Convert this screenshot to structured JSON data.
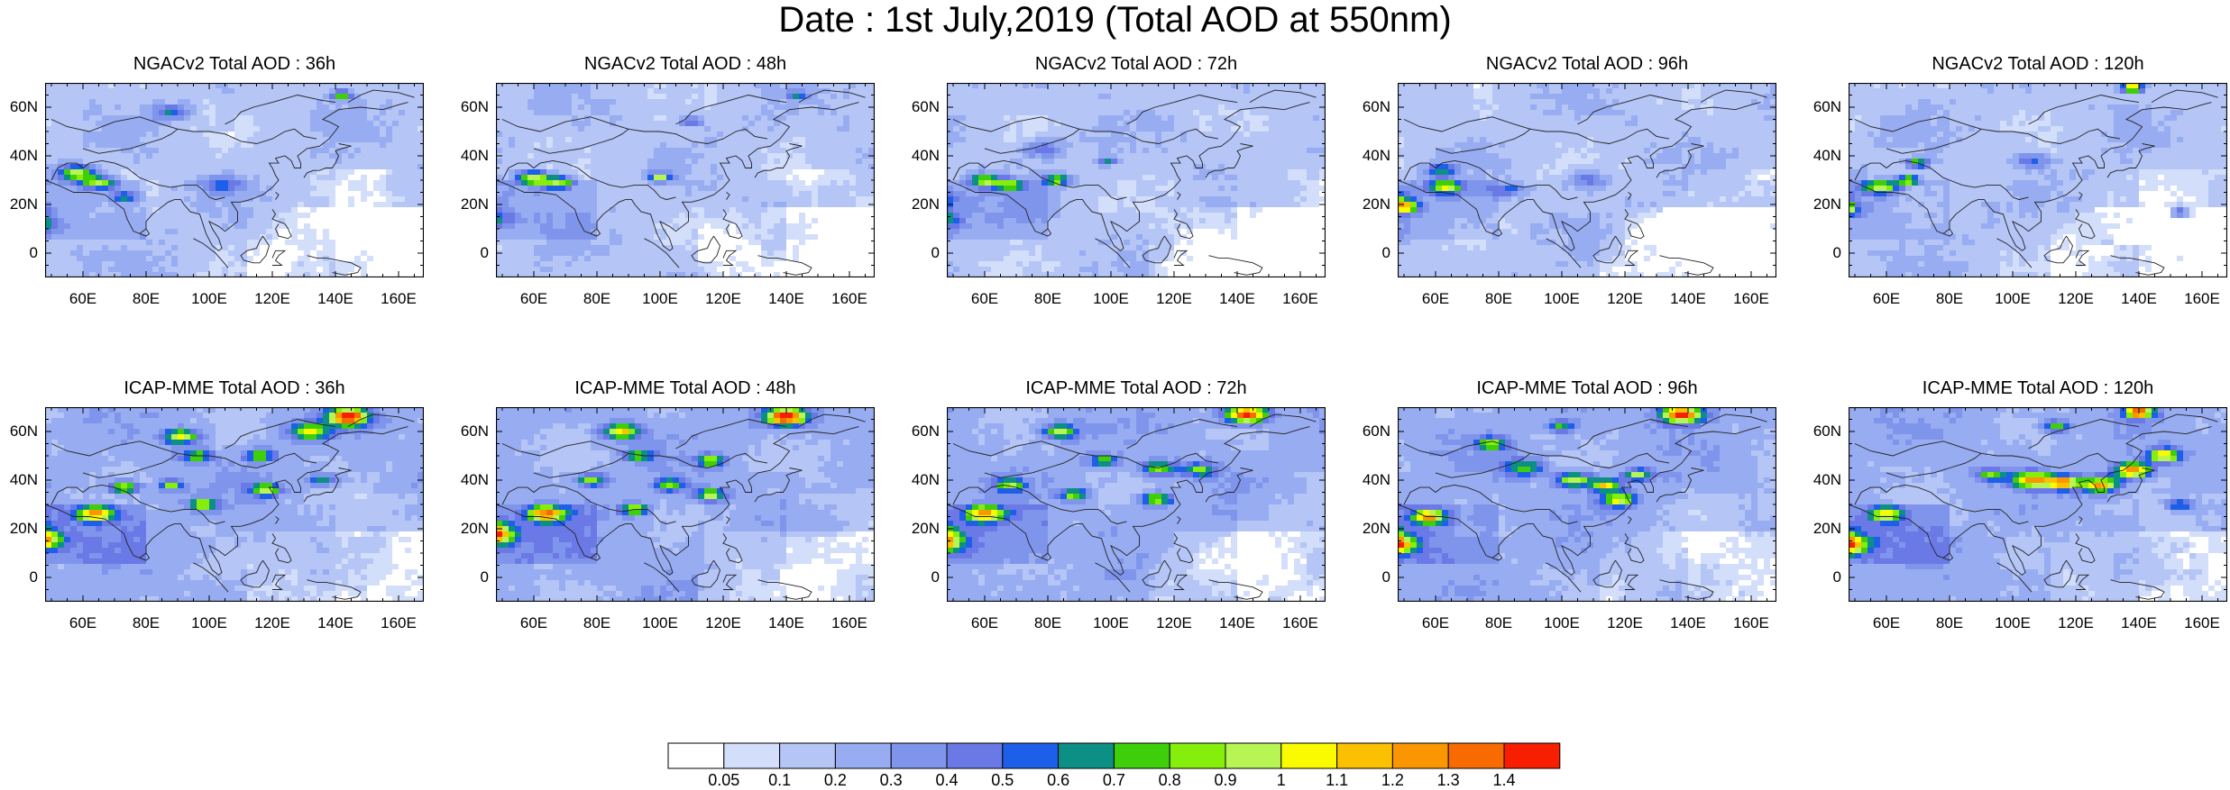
{
  "figure": {
    "title": "Date : 1st July,2019 (Total AOD at 550nm)"
  },
  "panels": [
    {
      "title": "NGACv2 Total AOD : 36h",
      "model": "NGACv2",
      "lead": "36h",
      "hotspots": [
        [
          -7,
          18,
          2.6,
          0.75
        ],
        [
          -3,
          12,
          3,
          0.55
        ],
        [
          10,
          33,
          2.6,
          0.85
        ],
        [
          17,
          29,
          2.3,
          0.7
        ],
        [
          25,
          23,
          2,
          0.45
        ],
        [
          56,
          28,
          3,
          0.35
        ],
        [
          94,
          65,
          1.6,
          0.7
        ],
        [
          40,
          58,
          2.4,
          0.45
        ]
      ]
    },
    {
      "title": "NGACv2 Total AOD : 48h",
      "model": "NGACv2",
      "lead": "48h",
      "hotspots": [
        [
          -7,
          20,
          2.6,
          0.72
        ],
        [
          -2,
          14,
          3,
          0.5
        ],
        [
          12,
          31,
          2.4,
          0.85
        ],
        [
          20,
          29,
          2.2,
          0.65
        ],
        [
          52,
          31,
          1.6,
          0.75
        ],
        [
          95,
          65,
          1.5,
          0.5
        ],
        [
          62,
          54,
          1.6,
          0.45
        ]
      ]
    },
    {
      "title": "NGACv2 Total AOD : 72h",
      "model": "NGACv2",
      "lead": "72h",
      "hotspots": [
        [
          -5,
          22,
          3,
          0.75
        ],
        [
          -3,
          14,
          3.2,
          0.6
        ],
        [
          12,
          30,
          2.2,
          0.7
        ],
        [
          20,
          28,
          2,
          0.6
        ],
        [
          35,
          30,
          1.8,
          0.75
        ],
        [
          51,
          38,
          1.4,
          0.45
        ],
        [
          30,
          43,
          3,
          0.35
        ]
      ]
    },
    {
      "title": "NGACv2 Total AOD : 96h",
      "model": "NGACv2",
      "lead": "96h",
      "hotspots": [
        [
          -4,
          22,
          3,
          0.75
        ],
        [
          2,
          19,
          2.2,
          0.85
        ],
        [
          15,
          27,
          2.4,
          0.75
        ],
        [
          14,
          34,
          2.2,
          0.55
        ],
        [
          35,
          26,
          2.4,
          0.4
        ],
        [
          60,
          30,
          3,
          0.3
        ],
        [
          130,
          22,
          2.6,
          0.4
        ]
      ]
    },
    {
      "title": "NGACv2 Total AOD : 120h",
      "model": "NGACv2",
      "lead": "120h",
      "hotspots": [
        [
          -7,
          22,
          3,
          0.75
        ],
        [
          -2,
          18,
          2.2,
          0.9
        ],
        [
          10,
          27,
          2.4,
          0.8
        ],
        [
          19,
          30,
          1.6,
          0.85
        ],
        [
          22,
          37,
          1.6,
          0.7
        ],
        [
          90,
          68,
          1.5,
          1.25
        ],
        [
          105,
          17,
          1.6,
          0.6
        ],
        [
          58,
          38,
          2.6,
          0.35
        ]
      ]
    },
    {
      "title": "ICAP-MME Total AOD : 36h",
      "model": "ICAP-MME",
      "lead": "36h",
      "hotspots": [
        [
          -7,
          18,
          3.5,
          0.75
        ],
        [
          -2,
          15,
          3,
          0.85
        ],
        [
          16,
          26,
          2.6,
          0.95
        ],
        [
          43,
          58,
          2.4,
          0.85
        ],
        [
          48,
          50,
          2.2,
          0.6
        ],
        [
          68,
          50,
          2,
          0.7
        ],
        [
          70,
          36,
          2.2,
          0.7
        ],
        [
          88,
          40,
          2,
          0.5
        ],
        [
          96,
          66,
          3,
          1.3
        ],
        [
          84,
          60,
          2.6,
          0.8
        ],
        [
          25,
          37,
          2,
          0.8
        ],
        [
          40,
          38,
          1.6,
          0.65
        ],
        [
          -10,
          35,
          2.2,
          0.6
        ],
        [
          50,
          30,
          1.8,
          0.75
        ]
      ]
    },
    {
      "title": "ICAP-MME Total AOD : 48h",
      "model": "ICAP-MME",
      "lead": "48h",
      "hotspots": [
        [
          -5,
          20,
          3.5,
          0.75
        ],
        [
          -1,
          17,
          3,
          0.85
        ],
        [
          16,
          26,
          2.6,
          0.95
        ],
        [
          40,
          60,
          2.6,
          0.85
        ],
        [
          45,
          50,
          2,
          0.6
        ],
        [
          68,
          48,
          2,
          0.65
        ],
        [
          68,
          34,
          2,
          0.8
        ],
        [
          92,
          66,
          3,
          1.3
        ],
        [
          30,
          40,
          2,
          0.7
        ],
        [
          44,
          28,
          2,
          0.75
        ],
        [
          55,
          38,
          2.2,
          0.6
        ]
      ]
    },
    {
      "title": "ICAP-MME Total AOD : 72h",
      "model": "ICAP-MME",
      "lead": "72h",
      "hotspots": [
        [
          -5,
          18,
          3.5,
          0.75
        ],
        [
          -2,
          14,
          3,
          0.85
        ],
        [
          12,
          26,
          2.6,
          0.95
        ],
        [
          36,
          60,
          2.4,
          0.75
        ],
        [
          50,
          48,
          2,
          0.6
        ],
        [
          67,
          45,
          2.4,
          0.7
        ],
        [
          66,
          32,
          2.2,
          0.75
        ],
        [
          95,
          67,
          3,
          1.3
        ],
        [
          80,
          44,
          2.4,
          0.55
        ],
        [
          40,
          34,
          2,
          0.65
        ],
        [
          20,
          38,
          2.2,
          0.6
        ]
      ]
    },
    {
      "title": "ICAP-MME Total AOD : 96h",
      "model": "ICAP-MME",
      "lead": "96h",
      "hotspots": [
        [
          -5,
          16,
          3.5,
          0.75
        ],
        [
          -1,
          13,
          3,
          0.8
        ],
        [
          10,
          25,
          2.4,
          0.9
        ],
        [
          56,
          40,
          2.4,
          0.8
        ],
        [
          66,
          38,
          2,
          0.9
        ],
        [
          76,
          42,
          2,
          0.75
        ],
        [
          70,
          32,
          2.4,
          0.85
        ],
        [
          90,
          67,
          3,
          1.3
        ],
        [
          40,
          45,
          3,
          0.55
        ],
        [
          30,
          55,
          2.4,
          0.6
        ],
        [
          52,
          62,
          2,
          0.5
        ]
      ]
    },
    {
      "title": "ICAP-MME Total AOD : 120h",
      "model": "ICAP-MME",
      "lead": "120h",
      "hotspots": [
        [
          -5,
          16,
          3.5,
          0.75
        ],
        [
          -1,
          13,
          3,
          0.85
        ],
        [
          12,
          26,
          2.4,
          0.8
        ],
        [
          58,
          40,
          2.6,
          1.0
        ],
        [
          68,
          39,
          2.4,
          1.05
        ],
        [
          80,
          38,
          2.6,
          1.0
        ],
        [
          90,
          44,
          2.6,
          1.1
        ],
        [
          100,
          50,
          2.4,
          0.9
        ],
        [
          92,
          68,
          2,
          1.3
        ],
        [
          66,
          62,
          2,
          0.55
        ],
        [
          45,
          42,
          2,
          0.6
        ],
        [
          105,
          30,
          2,
          0.5
        ]
      ]
    }
  ],
  "axes": {
    "x_ticks": [
      "60E",
      "80E",
      "100E",
      "120E",
      "140E",
      "160E"
    ],
    "x_values": [
      60,
      80,
      100,
      120,
      140,
      160
    ],
    "y_ticks": [
      "60N",
      "40N",
      "20N",
      "0"
    ],
    "y_values": [
      60,
      40,
      20,
      0
    ],
    "lon_range": [
      48,
      168
    ],
    "lat_range": [
      -10,
      70
    ]
  },
  "colorbar": {
    "labels": [
      "0.05",
      "0.1",
      "0.2",
      "0.3",
      "0.4",
      "0.5",
      "0.6",
      "0.7",
      "0.8",
      "0.9",
      "1",
      "1.1",
      "1.2",
      "1.3",
      "1.4"
    ],
    "thresholds": [
      0.05,
      0.1,
      0.2,
      0.3,
      0.4,
      0.5,
      0.6,
      0.7,
      0.8,
      0.9,
      1.0,
      1.1,
      1.2,
      1.3,
      1.4
    ],
    "colors": [
      "#ffffff",
      "#d3defa",
      "#b4c5f6",
      "#98acf1",
      "#7f95ec",
      "#6a79e6",
      "#1d5fe8",
      "#0c9086",
      "#3ecf0a",
      "#86ee0b",
      "#b7f554",
      "#fbfb00",
      "#fbc000",
      "#fa9700",
      "#f86b00",
      "#f81e00"
    ]
  }
}
